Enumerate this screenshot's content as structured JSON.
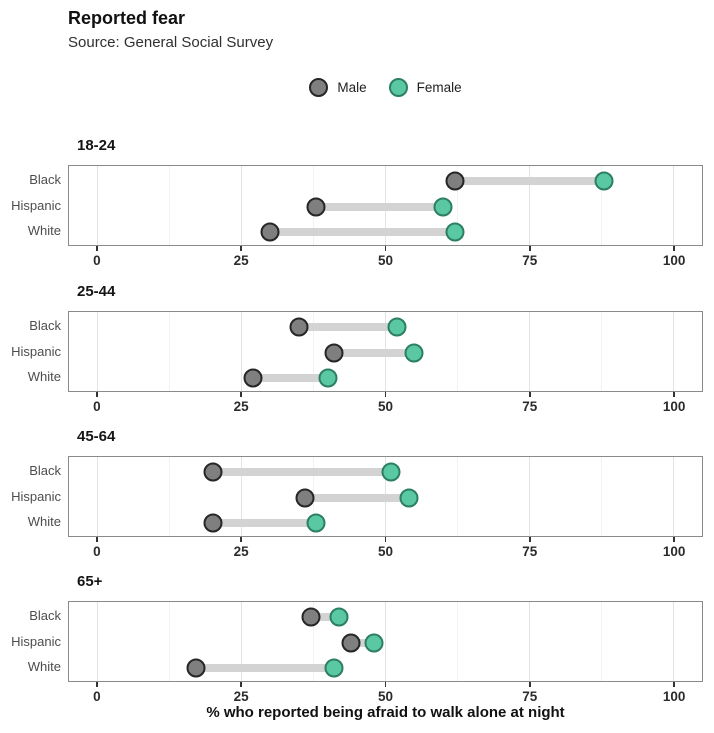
{
  "header": {
    "title": "Reported fear",
    "subtitle": "Source: General Social Survey"
  },
  "legend": {
    "items": [
      {
        "label": "Male",
        "fill": "#7f7f7f",
        "stroke": "#262626"
      },
      {
        "label": "Female",
        "fill": "#5ac8a2",
        "stroke": "#2c7f62"
      }
    ]
  },
  "chart_data": {
    "type": "dumbbell",
    "title": "Reported fear",
    "subtitle": "Source: General Social Survey",
    "xlabel": "% who reported being afraid to walk alone at night",
    "x_axis": {
      "label": "% who reported being afraid to walk alone at night",
      "ticks": [
        0,
        25,
        50,
        75,
        100
      ],
      "minor_ticks": [
        12.5,
        37.5,
        62.5,
        87.5
      ],
      "range": [
        -5,
        105
      ]
    },
    "categories": [
      "Black",
      "Hispanic",
      "White"
    ],
    "series_names": [
      "Male",
      "Female"
    ],
    "colors": {
      "male_fill": "#7f7f7f",
      "male_stroke": "#262626",
      "female_fill": "#5ac8a2",
      "female_stroke": "#2c7f62",
      "connector": "#d3d3d3",
      "gridline_major": "#e3e3e3",
      "gridline_minor": "#f2f2f2",
      "panel_border": "#8a8a8a",
      "tick": "#333333"
    },
    "panels": [
      {
        "title": "18-24",
        "rows": [
          {
            "label": "Black",
            "male": 62,
            "female": 88
          },
          {
            "label": "Hispanic",
            "male": 38,
            "female": 60
          },
          {
            "label": "White",
            "male": 30,
            "female": 62
          }
        ]
      },
      {
        "title": "25-44",
        "rows": [
          {
            "label": "Black",
            "male": 35,
            "female": 52
          },
          {
            "label": "Hispanic",
            "male": 41,
            "female": 55
          },
          {
            "label": "White",
            "male": 27,
            "female": 40
          }
        ]
      },
      {
        "title": "45-64",
        "rows": [
          {
            "label": "Black",
            "male": 20,
            "female": 51
          },
          {
            "label": "Hispanic",
            "male": 36,
            "female": 54
          },
          {
            "label": "White",
            "male": 20,
            "female": 38
          }
        ]
      },
      {
        "title": "65+",
        "rows": [
          {
            "label": "Black",
            "male": 37,
            "female": 42
          },
          {
            "label": "Hispanic",
            "male": 44,
            "female": 48
          },
          {
            "label": "White",
            "male": 17,
            "female": 41
          }
        ]
      }
    ]
  }
}
